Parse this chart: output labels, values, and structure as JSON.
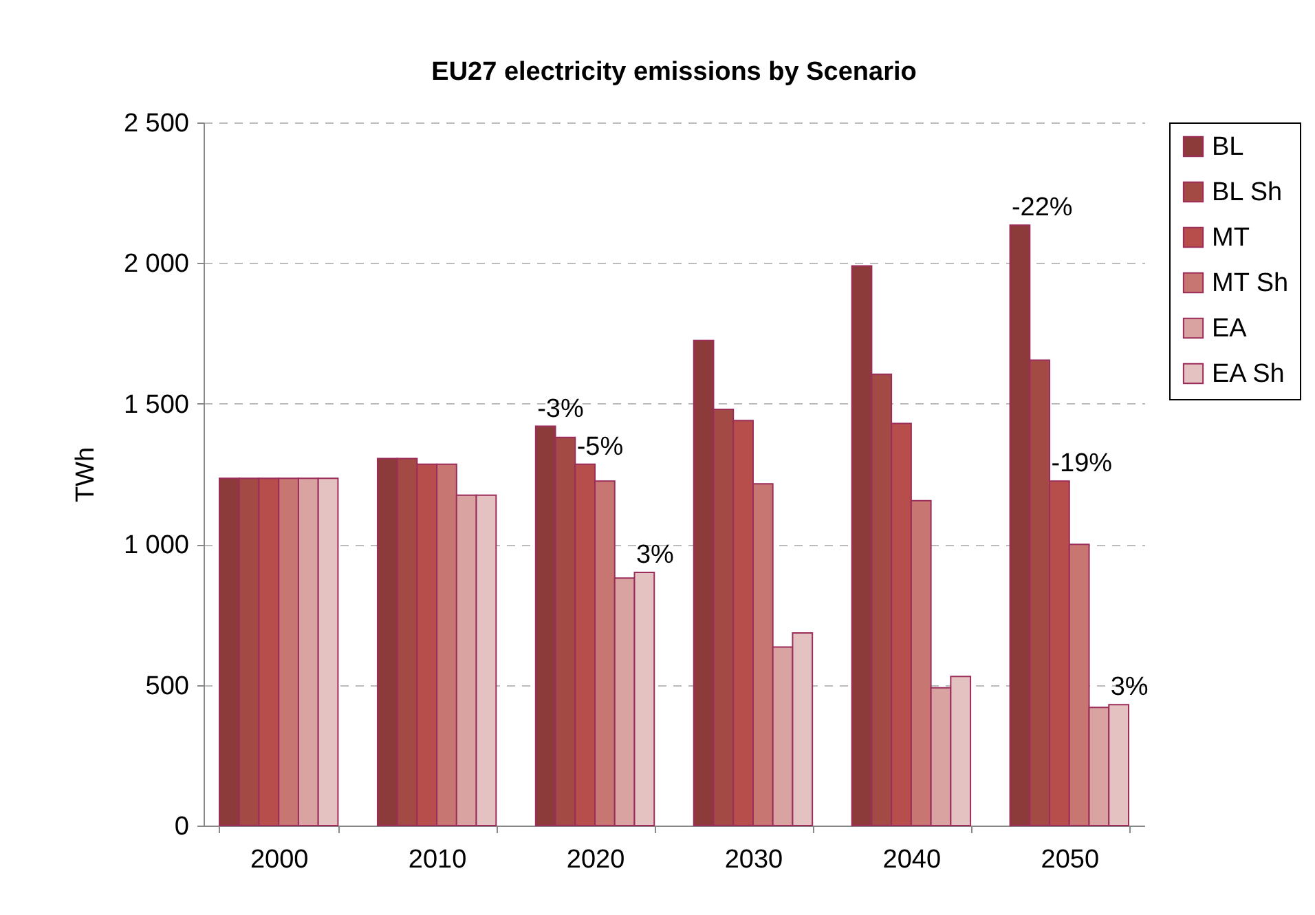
{
  "chart_data": {
    "type": "bar",
    "title": "EU27 electricity emissions by Scenario",
    "ylabel": "TWh",
    "categories": [
      "2000",
      "2010",
      "2020",
      "2030",
      "2040",
      "2050"
    ],
    "series": [
      {
        "name": "BL",
        "color": "#8c3a3a",
        "values": [
          1235,
          1305,
          1420,
          1725,
          1990,
          2135
        ]
      },
      {
        "name": "BL Sh",
        "color": "#a44a44",
        "values": [
          1235,
          1305,
          1380,
          1480,
          1605,
          1655
        ]
      },
      {
        "name": "MT",
        "color": "#b84e4c",
        "values": [
          1235,
          1285,
          1285,
          1440,
          1430,
          1225
        ]
      },
      {
        "name": "MT Sh",
        "color": "#c87672",
        "values": [
          1235,
          1285,
          1225,
          1215,
          1155,
          1000
        ]
      },
      {
        "name": "EA",
        "color": "#d9a3a2",
        "values": [
          1235,
          1175,
          880,
          635,
          490,
          420
        ]
      },
      {
        "name": "EA Sh",
        "color": "#e4c2c2",
        "values": [
          1235,
          1175,
          900,
          685,
          530,
          430
        ]
      }
    ],
    "ylim": [
      0,
      2500
    ],
    "yticks": [
      0,
      500,
      {
        "value": 1000,
        "label": "1 000"
      },
      {
        "value": 1500,
        "label": "1 500"
      },
      {
        "value": 2000,
        "label": "2 000"
      },
      {
        "value": 2500,
        "label": "2 500"
      }
    ],
    "grid": "y",
    "legend": "right",
    "annotations": [
      "-3%",
      {
        "text": "-5%",
        "x": "2020",
        "y": 1285
      },
      {
        "text": "3%",
        "x": "2020",
        "y": 900
      },
      "-22%",
      {
        "text": "-19%",
        "x": "2050",
        "y": 1225
      },
      {
        "text": "3%",
        "x": "2050",
        "y": 430
      }
    ]
  }
}
